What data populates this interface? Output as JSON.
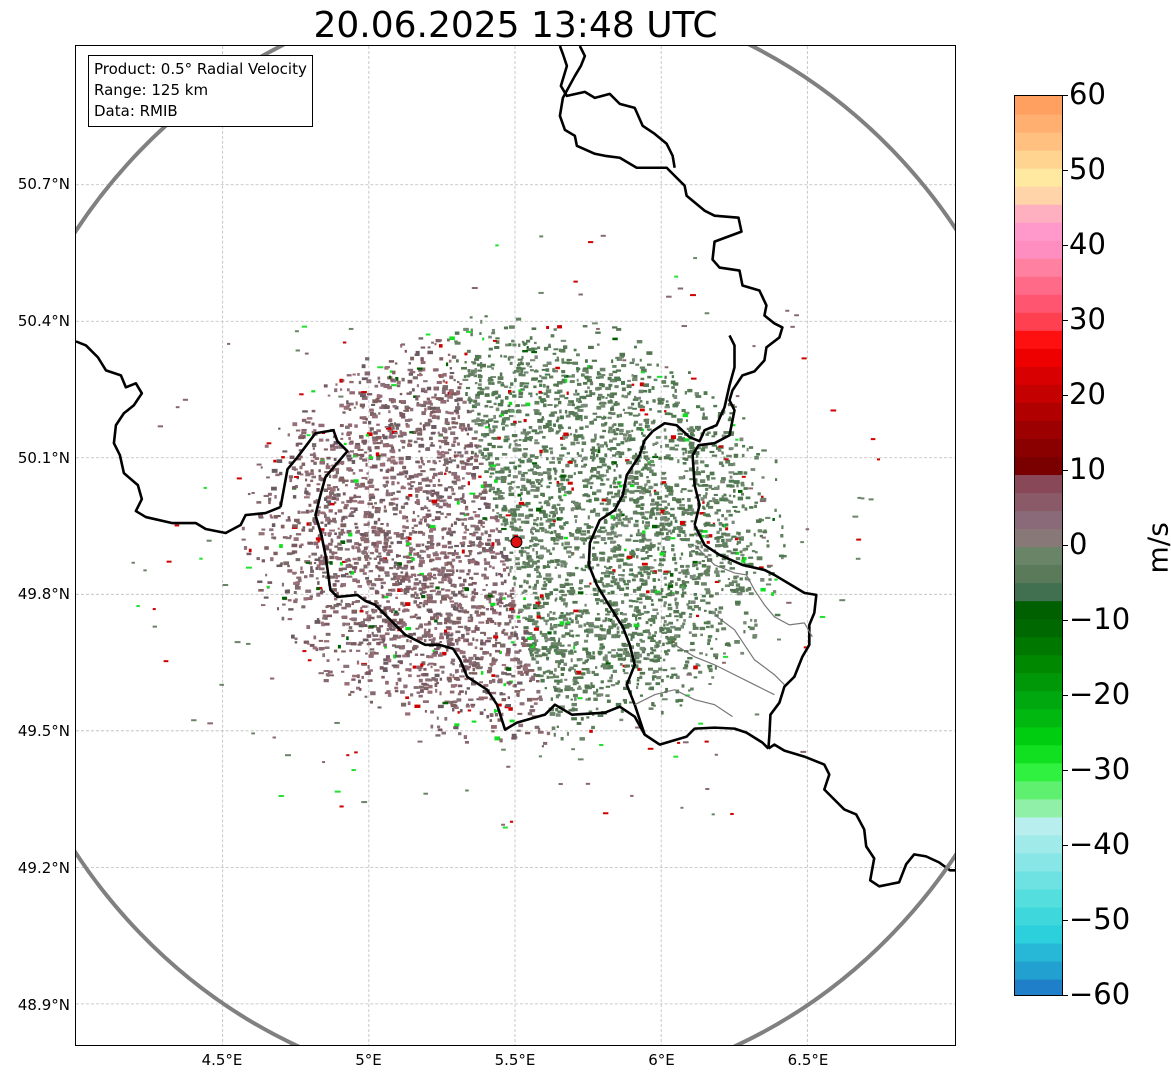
{
  "title": "20.06.2025 13:48 UTC",
  "info": {
    "product": "Product: 0.5° Radial Velocity",
    "range": "Range: 125 km",
    "data": "Data: RMIB"
  },
  "axes": {
    "lat_labels": [
      "50.7°N",
      "50.4°N",
      "50.1°N",
      "49.8°N",
      "49.5°N",
      "49.2°N",
      "48.9°N"
    ],
    "lat_values": [
      50.7,
      50.4,
      50.1,
      49.8,
      49.5,
      49.2,
      48.9
    ],
    "lon_labels": [
      "4.5°E",
      "5°E",
      "5.5°E",
      "6°E",
      "6.5°E"
    ],
    "lon_values": [
      4.5,
      5.0,
      5.5,
      6.0,
      6.5
    ],
    "lon_range": [
      4.0,
      7.0
    ],
    "lat_range": [
      48.8,
      51.0
    ],
    "grid": "dashed light gray"
  },
  "radar": {
    "site_lon": 5.505,
    "site_lat": 49.915,
    "site_color": "#e01010",
    "range_km": 125,
    "range_ring_color": "#808080"
  },
  "colorbar": {
    "label": "m/s",
    "min": -60,
    "max": 60,
    "tick_values": [
      60,
      50,
      40,
      30,
      20,
      10,
      0,
      -10,
      -20,
      -30,
      -40,
      -50,
      -60
    ],
    "tick_labels": [
      "60",
      "50",
      "40",
      "30",
      "20",
      "10",
      "0",
      "−10",
      "−20",
      "−30",
      "−40",
      "−50",
      "−60"
    ],
    "colors_bottom_to_top": [
      "#1f7fc8",
      "#22a0d0",
      "#27b8d8",
      "#2cd0dc",
      "#3ed8dc",
      "#55dede",
      "#6ee2e2",
      "#88e6e6",
      "#a0eaea",
      "#b8eeee",
      "#90f0a8",
      "#60f070",
      "#30f040",
      "#10e020",
      "#00cc10",
      "#00b810",
      "#00a810",
      "#009808",
      "#008800",
      "#007800",
      "#006800",
      "#006000",
      "#407050",
      "#5a7a5a",
      "#6a8468",
      "#887878",
      "#8a6a78",
      "#8a5a68",
      "#884858",
      "#7a0000",
      "#8a0000",
      "#9c0000",
      "#b00000",
      "#c40000",
      "#d80000",
      "#ee0000",
      "#ff1010",
      "#ff4050",
      "#ff5570",
      "#ff6a88",
      "#ff80a0",
      "#ff8ec0",
      "#ff99cc",
      "#ffb0c0",
      "#ffd4a8",
      "#ffe8a0",
      "#ffd490",
      "#ffc080",
      "#ffb070",
      "#ffa060"
    ]
  }
}
